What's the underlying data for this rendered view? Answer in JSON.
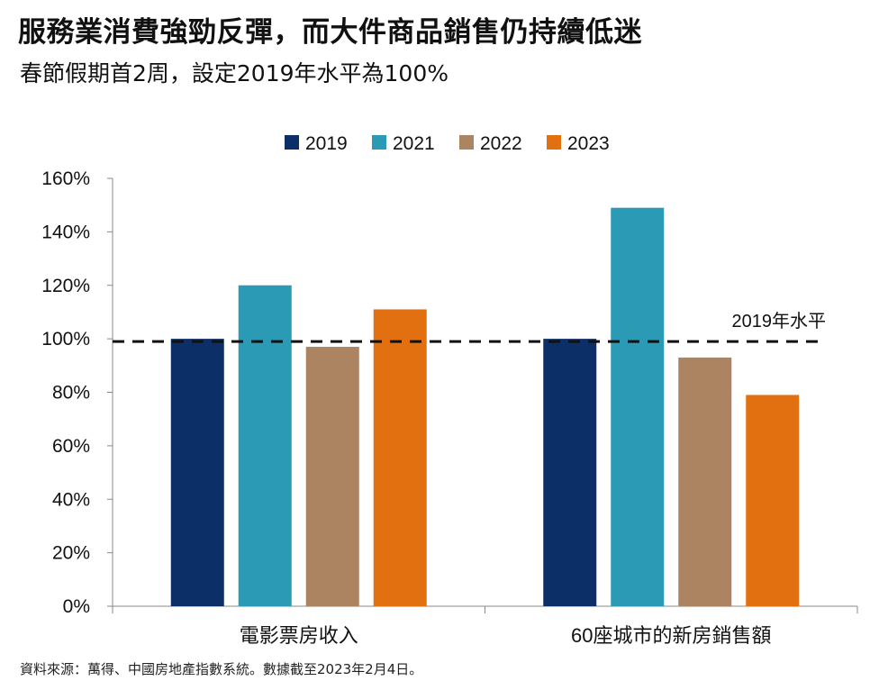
{
  "header": {
    "title": "服務業消費強勁反彈，而大件商品銷售仍持續低迷",
    "subtitle": "春節假期首2周，設定2019年水平為100%"
  },
  "footer": {
    "source": "資料來源：萬得、中國房地產指數系統。數據截至2023年2月4日。"
  },
  "colors": {
    "2019": "#0b2f66",
    "2021": "#2b9ab5",
    "2022": "#ad8461",
    "2023": "#e37010",
    "reference_line": "#111111",
    "axis": "#888888"
  },
  "chart_data": {
    "type": "bar",
    "categories": [
      "電影票房收入",
      "60座城市的新房銷售額"
    ],
    "series": [
      {
        "name": "2019",
        "values": [
          100,
          100
        ]
      },
      {
        "name": "2021",
        "values": [
          120,
          149
        ]
      },
      {
        "name": "2022",
        "values": [
          97,
          93
        ]
      },
      {
        "name": "2023",
        "values": [
          111,
          79
        ]
      }
    ],
    "ylim": [
      0,
      160
    ],
    "yticks": [
      0,
      20,
      40,
      60,
      80,
      100,
      120,
      140,
      160
    ],
    "ytick_labels": [
      "0%",
      "20%",
      "40%",
      "60%",
      "80%",
      "100%",
      "120%",
      "140%",
      "160%"
    ],
    "reference_line": {
      "value": 99,
      "label": "2019年水平",
      "style": "dashed"
    },
    "legend_position": "top-center",
    "grid": false,
    "xlabel": "",
    "ylabel": ""
  }
}
